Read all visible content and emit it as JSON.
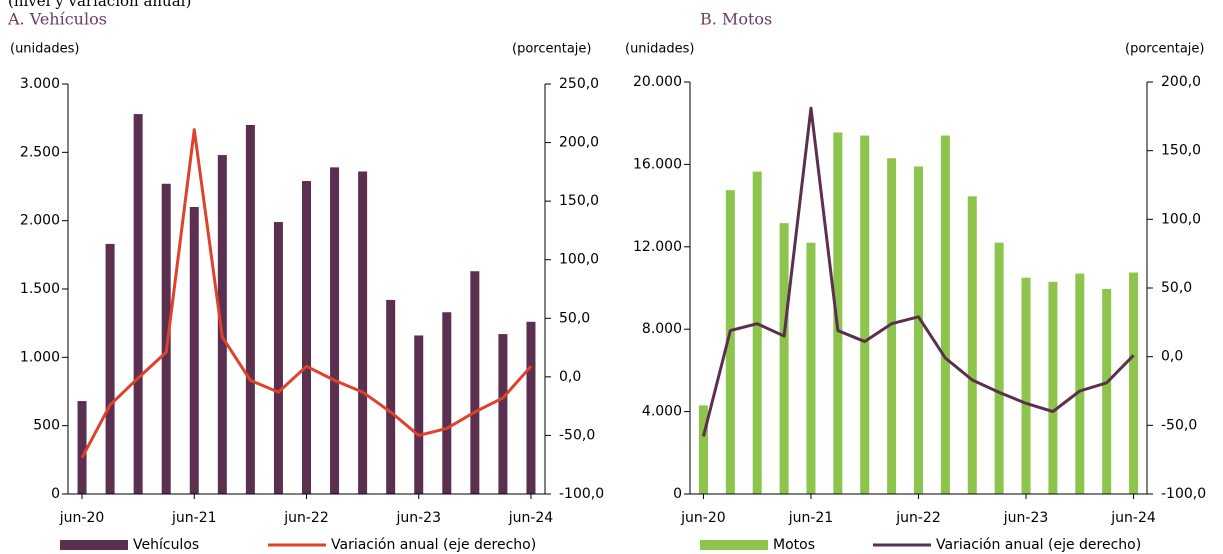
{
  "subtitle": "(nivel y variación anual)",
  "chart_data": [
    {
      "type": "combo",
      "title": "A. Vehículos",
      "ylabel": "(unidades)",
      "y2label": "(porcentaje)",
      "categories": [
        "jun-20",
        null,
        null,
        null,
        "jun-21",
        null,
        null,
        null,
        "jun-22",
        null,
        null,
        null,
        "jun-23",
        null,
        null,
        null,
        "jun-24"
      ],
      "series": [
        {
          "name": "Vehículos",
          "type": "bar",
          "color": "#5b2f4f",
          "values": [
            680,
            1830,
            2780,
            2270,
            2100,
            2480,
            2700,
            1990,
            2290,
            2390,
            2360,
            1420,
            1160,
            1330,
            1630,
            1170,
            1260
          ]
        },
        {
          "name": "Variación anual (eje derecho)",
          "type": "line",
          "axis": "y2",
          "color": "#e0412a",
          "values": [
            -69,
            -24,
            -1,
            21,
            211,
            34,
            -3,
            -13,
            9,
            -3,
            -13,
            -30,
            -50,
            -44,
            -30,
            -18,
            9
          ]
        }
      ],
      "ylim": [
        0,
        3000
      ],
      "yticks": [
        0,
        500,
        {
          "value": 1000,
          "label": "1.000"
        },
        {
          "value": 1500,
          "label": "1.500"
        },
        {
          "value": 2000,
          "label": "2.000"
        },
        {
          "value": 2500,
          "label": "2.500"
        },
        {
          "value": 3000,
          "label": "3.000"
        }
      ],
      "y2lim": [
        -100,
        250
      ],
      "y2ticks": [
        {
          "value": -100,
          "label": "-100,0"
        },
        {
          "value": -50,
          "label": "-50,0"
        },
        {
          "value": 0,
          "label": "0,0"
        },
        {
          "value": 50,
          "label": "50,0"
        },
        {
          "value": 100,
          "label": "100,0"
        },
        {
          "value": 150,
          "label": "150,0"
        },
        {
          "value": 200,
          "label": "200,0"
        },
        {
          "value": 250,
          "label": "250,0"
        }
      ]
    },
    {
      "type": "combo",
      "title": "B. Motos",
      "ylabel": "(unidades)",
      "y2label": "(porcentaje)",
      "categories": [
        "jun-20",
        null,
        null,
        null,
        "jun-21",
        null,
        null,
        null,
        "jun-22",
        null,
        null,
        null,
        "jun-23",
        null,
        null,
        null,
        "jun-24"
      ],
      "series": [
        {
          "name": "Motos",
          "type": "bar",
          "color": "#8dc44b",
          "values": [
            4300,
            14750,
            15650,
            13150,
            12200,
            17550,
            17400,
            16300,
            15900,
            17400,
            14450,
            12200,
            10500,
            10300,
            10700,
            9950,
            10750
          ]
        },
        {
          "name": "Variación anual (eje derecho)",
          "type": "line",
          "axis": "y2",
          "color": "#5b2f4f",
          "values": [
            -58,
            19,
            24,
            15,
            181,
            19,
            11,
            24,
            29,
            -1,
            -17,
            -26,
            -34,
            -40,
            -25,
            -19,
            1
          ]
        }
      ],
      "ylim": [
        0,
        20000
      ],
      "yticks": [
        0,
        {
          "value": 4000,
          "label": "4.000"
        },
        {
          "value": 8000,
          "label": "8.000"
        },
        {
          "value": 12000,
          "label": "12.000"
        },
        {
          "value": 16000,
          "label": "16.000"
        },
        {
          "value": 20000,
          "label": "20.000"
        }
      ],
      "y2lim": [
        -100,
        200
      ],
      "y2ticks": [
        {
          "value": -100,
          "label": "-100,0"
        },
        {
          "value": -50,
          "label": "-50,0"
        },
        {
          "value": 0,
          "label": "0,0"
        },
        {
          "value": 50,
          "label": "50,0"
        },
        {
          "value": 100,
          "label": "100,0"
        },
        {
          "value": 150,
          "label": "150,0"
        },
        {
          "value": 200,
          "label": "200,0"
        }
      ]
    }
  ]
}
